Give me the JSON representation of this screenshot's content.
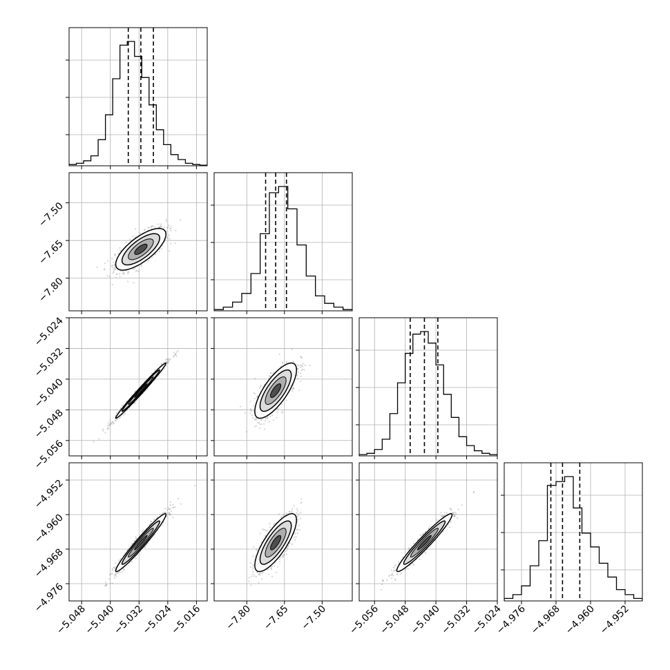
{
  "chart_data": {
    "type": "corner",
    "grid": true,
    "parameters": [
      {
        "center": -5.0315,
        "q16": -5.035,
        "q84": -5.028,
        "tick_values": [
          -5.048,
          -5.04,
          -5.032,
          -5.024,
          -5.016
        ],
        "tick_labels": [
          "−5.048",
          "−5.040",
          "−5.032",
          "−5.024",
          "−5.016"
        ],
        "range": [
          -5.0515,
          -5.013
        ],
        "hist": [
          0.01,
          0.02,
          0.04,
          0.08,
          0.21,
          0.41,
          0.7,
          0.97,
          1.0,
          0.88,
          0.71,
          0.49,
          0.29,
          0.17,
          0.09,
          0.05,
          0.02,
          0.01,
          0.005
        ]
      },
      {
        "center": -7.685,
        "q16": -7.725,
        "q84": -7.642,
        "tick_values": [
          -7.8,
          -7.65,
          -7.5
        ],
        "tick_labels": [
          "−7.80",
          "−7.65",
          "−7.50"
        ],
        "range": [
          -7.93,
          -7.38
        ],
        "hist": [
          0.01,
          0.03,
          0.07,
          0.14,
          0.3,
          0.62,
          0.95,
          1.0,
          0.82,
          0.53,
          0.28,
          0.12,
          0.06,
          0.03,
          0.01
        ]
      },
      {
        "center": -5.043,
        "q16": -5.0467,
        "q84": -5.0395,
        "tick_values": [
          -5.056,
          -5.048,
          -5.04,
          -5.032,
          -5.024
        ],
        "tick_labels": [
          "−5.056",
          "−5.048",
          "−5.040",
          "−5.032",
          "−5.024"
        ],
        "range": [
          -5.06,
          -5.024
        ],
        "hist": [
          0.01,
          0.02,
          0.05,
          0.13,
          0.33,
          0.57,
          0.8,
          0.95,
          0.97,
          0.88,
          0.71,
          0.48,
          0.3,
          0.15,
          0.08,
          0.04,
          0.02,
          0.01
        ]
      },
      {
        "center": -4.9665,
        "q16": -4.9692,
        "q84": -4.9625,
        "tick_values": [
          -4.976,
          -4.968,
          -4.96,
          -4.952
        ],
        "tick_labels": [
          "−4.976",
          "−4.968",
          "−4.960",
          "−4.952"
        ],
        "range": [
          -4.98,
          -4.948
        ],
        "hist": [
          0.02,
          0.05,
          0.12,
          0.28,
          0.48,
          0.92,
          0.95,
          0.99,
          0.74,
          0.54,
          0.43,
          0.3,
          0.19,
          0.09,
          0.05,
          0.02
        ]
      }
    ],
    "correlations": [
      {
        "row": 1,
        "col": 0,
        "rho": 0.72,
        "shape": "ellipse"
      },
      {
        "row": 2,
        "col": 0,
        "rho": 0.99,
        "shape": "ridge"
      },
      {
        "row": 2,
        "col": 1,
        "rho": 0.75,
        "shape": "ellipse"
      },
      {
        "row": 3,
        "col": 0,
        "rho": 0.97,
        "shape": "ridge"
      },
      {
        "row": 3,
        "col": 1,
        "rho": 0.78,
        "shape": "ellipse"
      },
      {
        "row": 3,
        "col": 2,
        "rho": 0.96,
        "shape": "ridge"
      }
    ]
  }
}
